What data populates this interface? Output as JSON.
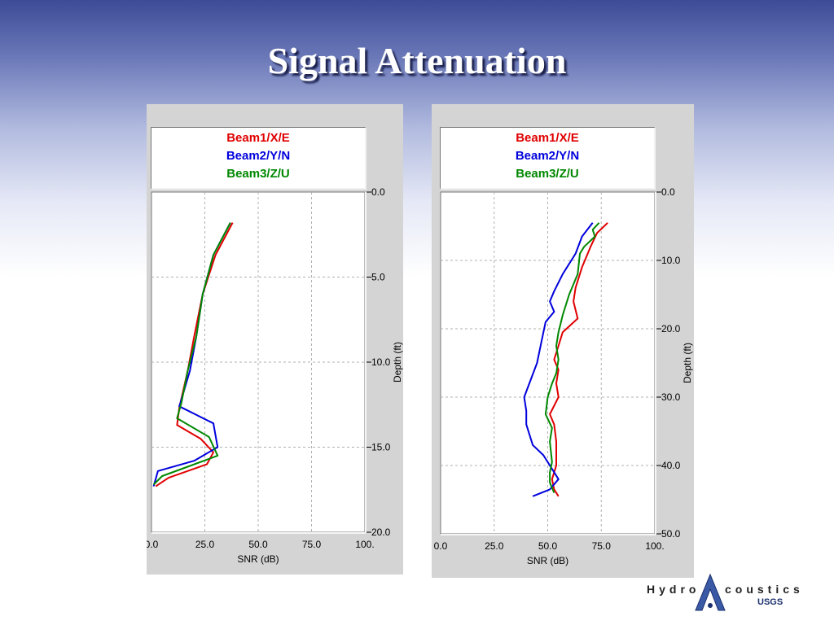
{
  "slide": {
    "title": "Signal Attenuation"
  },
  "legend": {
    "beam1": "Beam1/X/E",
    "beam2": "Beam2/Y/N",
    "beam3": "Beam3/Z/U"
  },
  "colors": {
    "beam1": "#e00000",
    "beam2": "#0000dd",
    "beam3": "#008800"
  },
  "logo": {
    "left": "Hydro",
    "right": "coustics",
    "agency": "USGS",
    "icon": "triangle-a-logo-icon"
  },
  "chart_data": [
    {
      "type": "line",
      "xlabel": "SNR (dB)",
      "ylabel": "Depth (ft)",
      "xlim": [
        0,
        100
      ],
      "ylim": [
        0,
        20
      ],
      "x_ticks": [
        "0.0",
        "25.0",
        "50.0",
        "75.0",
        "100."
      ],
      "y_ticks": [
        "0.0",
        "5.0",
        "10.0",
        "15.0",
        "20.0"
      ],
      "grid": true,
      "legend_position": "top",
      "series": [
        {
          "name": "Beam1/X/E",
          "color": "#e00000",
          "points": [
            [
              38,
              1.8
            ],
            [
              30,
              3.7
            ],
            [
              24,
              6.0
            ],
            [
              20,
              8.5
            ],
            [
              17,
              10.5
            ],
            [
              13,
              12.7
            ],
            [
              12,
              13.7
            ],
            [
              23,
              14.5
            ],
            [
              29,
              15.3
            ],
            [
              26,
              16.0
            ],
            [
              8,
              16.8
            ],
            [
              2,
              17.3
            ]
          ]
        },
        {
          "name": "Beam2/Y/N",
          "color": "#0000dd",
          "points": [
            [
              37,
              1.8
            ],
            [
              29,
              3.7
            ],
            [
              24,
              6.0
            ],
            [
              21,
              8.5
            ],
            [
              18,
              10.5
            ],
            [
              14,
              12.2
            ],
            [
              13,
              12.6
            ],
            [
              29,
              13.6
            ],
            [
              31,
              15.0
            ],
            [
              20,
              15.8
            ],
            [
              3,
              16.4
            ],
            [
              1,
              17.3
            ]
          ]
        },
        {
          "name": "Beam3/Z/U",
          "color": "#008800",
          "points": [
            [
              37,
              1.8
            ],
            [
              29,
              3.7
            ],
            [
              24,
              6.0
            ],
            [
              21,
              8.5
            ],
            [
              17,
              10.5
            ],
            [
              14,
              12.4
            ],
            [
              12,
              13.3
            ],
            [
              27,
              14.4
            ],
            [
              31,
              15.5
            ],
            [
              18,
              16.1
            ],
            [
              5,
              16.7
            ],
            [
              1,
              17.2
            ]
          ]
        }
      ]
    },
    {
      "type": "line",
      "xlabel": "SNR (dB)",
      "ylabel": "Depth (ft)",
      "xlim": [
        0,
        100
      ],
      "ylim": [
        0,
        50
      ],
      "x_ticks": [
        "0.0",
        "25.0",
        "50.0",
        "75.0",
        "100."
      ],
      "y_ticks": [
        "0.0",
        "10.0",
        "20.0",
        "30.0",
        "40.0",
        "50.0"
      ],
      "grid": true,
      "legend_position": "top",
      "series": [
        {
          "name": "Beam1/X/E",
          "color": "#e00000",
          "points": [
            [
              78,
              4.5
            ],
            [
              73,
              6.0
            ],
            [
              70,
              8.0
            ],
            [
              66,
              11.0
            ],
            [
              63,
              14.0
            ],
            [
              62,
              16.0
            ],
            [
              64,
              18.5
            ],
            [
              57,
              20.5
            ],
            [
              55,
              22.5
            ],
            [
              53,
              24.5
            ],
            [
              55,
              26.0
            ],
            [
              54,
              28.0
            ],
            [
              55,
              30.0
            ],
            [
              51,
              32.5
            ],
            [
              53,
              34.0
            ],
            [
              54,
              36.5
            ],
            [
              54,
              38.0
            ],
            [
              54,
              40.0
            ],
            [
              52,
              42.0
            ],
            [
              53,
              43.5
            ],
            [
              55,
              44.5
            ]
          ]
        },
        {
          "name": "Beam2/Y/N",
          "color": "#0000dd",
          "points": [
            [
              71,
              4.5
            ],
            [
              66,
              6.5
            ],
            [
              63,
              9.0
            ],
            [
              57,
              12.0
            ],
            [
              53,
              14.5
            ],
            [
              51,
              16.0
            ],
            [
              53,
              17.5
            ],
            [
              49,
              19.0
            ],
            [
              47,
              22.0
            ],
            [
              45,
              25.0
            ],
            [
              42,
              27.5
            ],
            [
              39,
              30.0
            ],
            [
              40,
              32.0
            ],
            [
              40,
              34.0
            ],
            [
              43,
              37.0
            ],
            [
              48,
              38.5
            ],
            [
              52,
              40.5
            ],
            [
              55,
              42.0
            ],
            [
              51,
              43.5
            ],
            [
              43,
              44.5
            ]
          ]
        },
        {
          "name": "Beam3/Z/U",
          "color": "#008800",
          "points": [
            [
              74,
              4.5
            ],
            [
              71,
              5.5
            ],
            [
              72,
              6.5
            ],
            [
              67,
              8.0
            ],
            [
              65,
              9.0
            ],
            [
              64,
              12.0
            ],
            [
              60,
              15.0
            ],
            [
              57,
              18.0
            ],
            [
              55,
              20.5
            ],
            [
              54,
              22.5
            ],
            [
              55,
              24.5
            ],
            [
              54,
              26.5
            ],
            [
              52,
              28.0
            ],
            [
              50,
              30.0
            ],
            [
              49,
              32.5
            ],
            [
              52,
              34.5
            ],
            [
              51,
              36.5
            ],
            [
              52,
              39.5
            ],
            [
              51,
              41.0
            ],
            [
              51,
              42.5
            ],
            [
              53,
              44.0
            ]
          ]
        }
      ]
    }
  ]
}
